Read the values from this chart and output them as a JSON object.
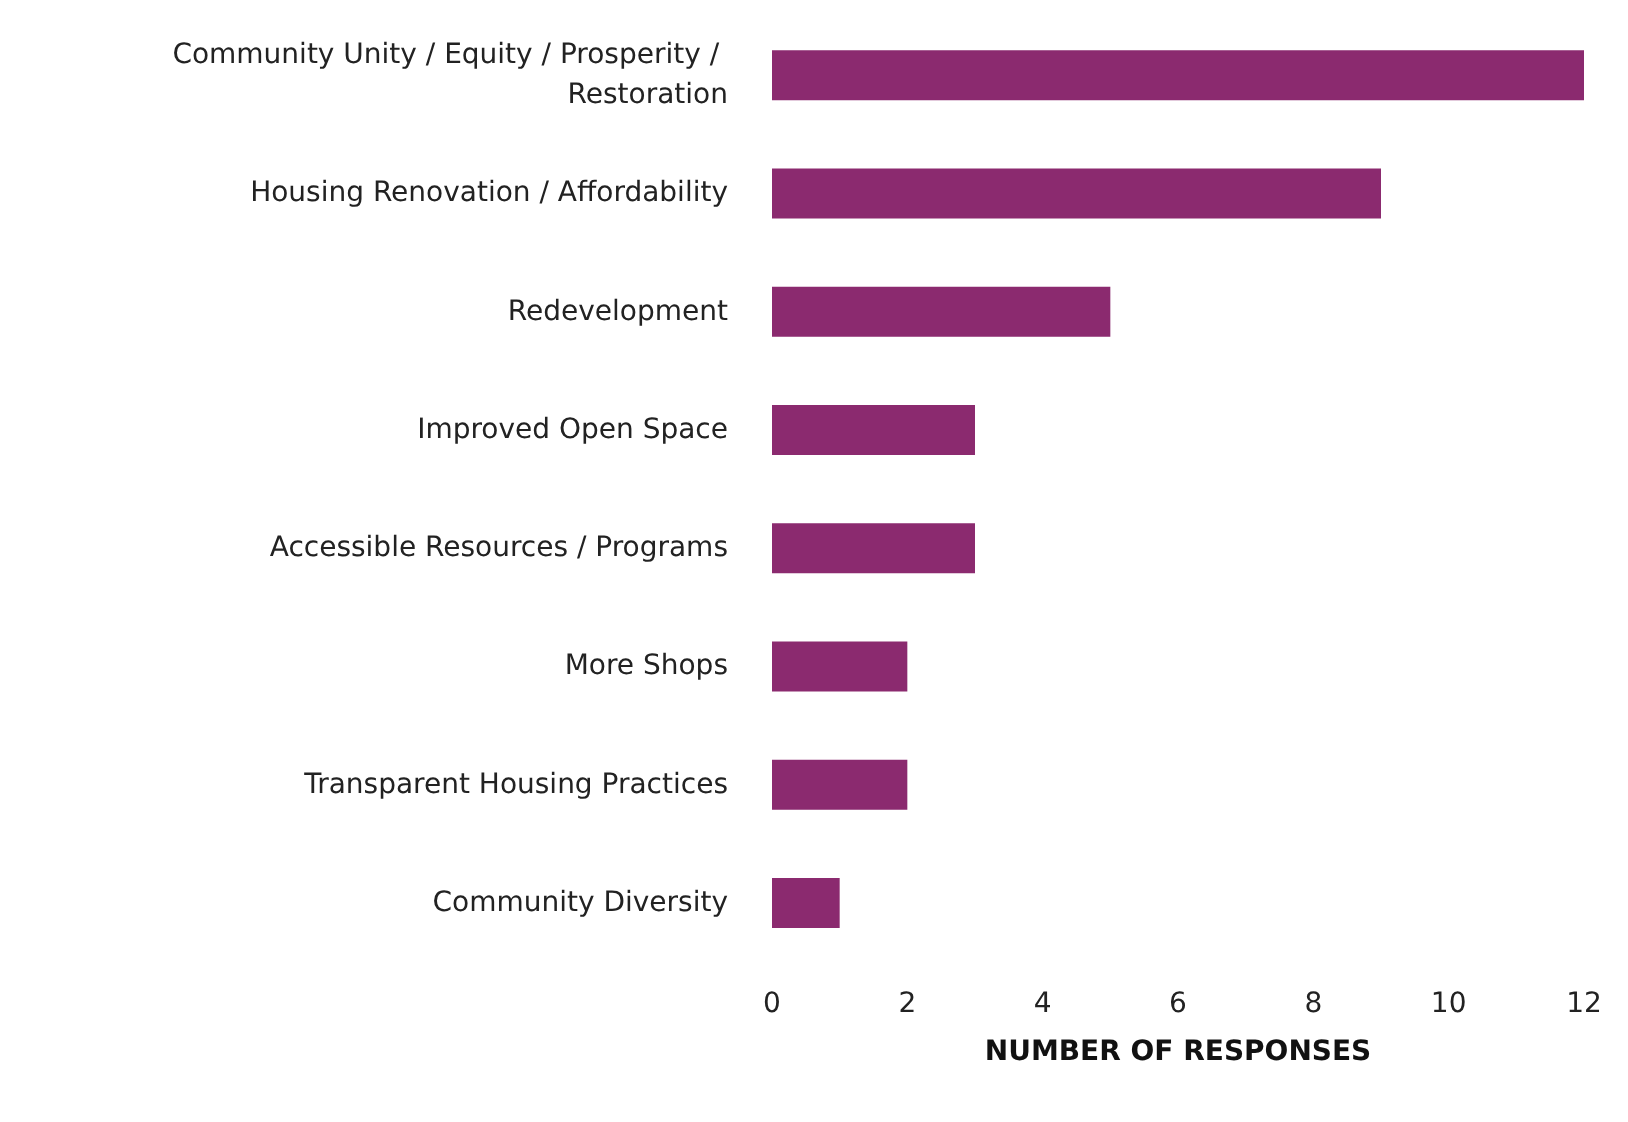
{
  "chart_data": {
    "type": "bar",
    "orientation": "horizontal",
    "xlabel": "NUMBER OF RESPONSES",
    "categories": [
      "Community Unity / Equity / Prosperity / Restoration",
      "Housing Renovation / Affordability",
      "Redevelopment",
      "Improved Open Space",
      "Accessible Resources / Programs",
      "More Shops",
      "Transparent Housing Practices",
      "Community Diversity"
    ],
    "values": [
      12,
      9,
      5,
      3,
      3,
      2,
      2,
      1
    ],
    "color": "#8b2a6f",
    "xlim": [
      0,
      12
    ],
    "xticks": [
      0,
      2,
      4,
      6,
      8,
      10,
      12
    ],
    "grid": false
  }
}
